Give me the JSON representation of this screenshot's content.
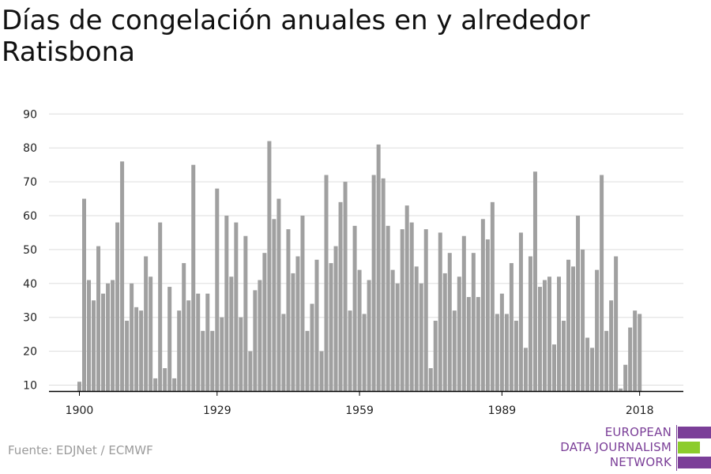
{
  "title": "Días de congelación anuales en y alrededor Ratisbona",
  "source": "Fuente: EDJNet / ECMWF",
  "logo": {
    "lines": [
      "EUROPEAN",
      "DATA JOURNALISM",
      "NETWORK"
    ],
    "colors": {
      "purple": "#7b3f98",
      "green": "#8ccc2c"
    }
  },
  "colors": {
    "bar": "#a0a0a0",
    "grid": "#dddddd",
    "axis": "#000000",
    "text": "#222222"
  },
  "chart_data": {
    "type": "bar",
    "title": "Días de congelación anuales en y alrededor Ratisbona",
    "xlabel": "",
    "ylabel": "",
    "ylim": [
      7,
      90
    ],
    "yticks": [
      10,
      20,
      30,
      40,
      50,
      60,
      70,
      80,
      90
    ],
    "xticks": [
      1900,
      1929,
      1959,
      1989,
      2018
    ],
    "grid": true,
    "x": [
      1900,
      1901,
      1902,
      1903,
      1904,
      1905,
      1906,
      1907,
      1908,
      1909,
      1910,
      1911,
      1912,
      1913,
      1914,
      1915,
      1916,
      1917,
      1918,
      1919,
      1920,
      1921,
      1922,
      1923,
      1924,
      1925,
      1926,
      1927,
      1928,
      1929,
      1930,
      1931,
      1932,
      1933,
      1934,
      1935,
      1936,
      1937,
      1938,
      1939,
      1940,
      1941,
      1942,
      1943,
      1944,
      1945,
      1946,
      1947,
      1948,
      1949,
      1950,
      1951,
      1952,
      1953,
      1954,
      1955,
      1956,
      1957,
      1958,
      1959,
      1960,
      1961,
      1962,
      1963,
      1964,
      1965,
      1966,
      1967,
      1968,
      1969,
      1970,
      1971,
      1972,
      1973,
      1974,
      1975,
      1976,
      1977,
      1978,
      1979,
      1980,
      1981,
      1982,
      1983,
      1984,
      1985,
      1986,
      1987,
      1988,
      1989,
      1990,
      1991,
      1992,
      1993,
      1994,
      1995,
      1996,
      1997,
      1998,
      1999,
      2000,
      2001,
      2002,
      2003,
      2004,
      2005,
      2006,
      2007,
      2008,
      2009,
      2010,
      2011,
      2012,
      2013,
      2014,
      2015,
      2016,
      2017,
      2018
    ],
    "values": [
      11,
      65,
      41,
      35,
      51,
      37,
      40,
      41,
      58,
      76,
      29,
      40,
      33,
      32,
      48,
      42,
      12,
      58,
      15,
      39,
      12,
      32,
      46,
      35,
      75,
      37,
      26,
      37,
      26,
      68,
      30,
      60,
      42,
      58,
      30,
      54,
      20,
      38,
      41,
      49,
      82,
      59,
      65,
      31,
      56,
      43,
      48,
      60,
      26,
      34,
      47,
      20,
      72,
      46,
      51,
      64,
      70,
      32,
      57,
      44,
      31,
      41,
      72,
      81,
      71,
      57,
      44,
      40,
      56,
      63,
      58,
      45,
      40,
      56,
      15,
      29,
      55,
      43,
      49,
      32,
      42,
      54,
      36,
      49,
      36,
      59,
      53,
      64,
      31,
      37,
      31,
      46,
      29,
      55,
      21,
      48,
      73,
      39,
      41,
      42,
      22,
      42,
      29,
      47,
      45,
      60,
      50,
      24,
      21,
      44,
      72,
      26,
      35,
      48,
      9,
      16,
      27,
      32,
      31
    ]
  }
}
